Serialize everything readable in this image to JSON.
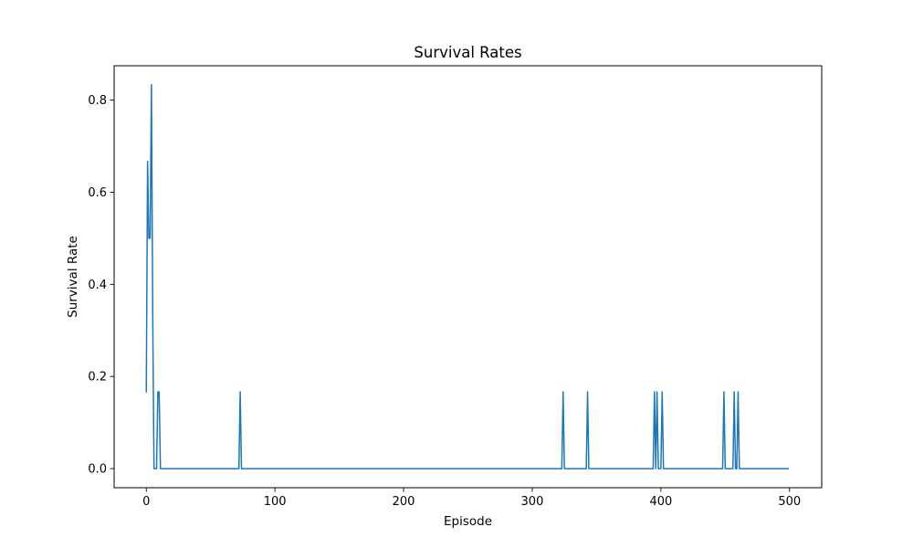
{
  "chart_data": {
    "type": "line",
    "title": "Survival Rates",
    "xlabel": "Episode",
    "ylabel": "Survival Rate",
    "xlim": [
      -25,
      525
    ],
    "ylim": [
      -0.0415,
      0.8745
    ],
    "xticks": [
      0,
      100,
      200,
      300,
      400,
      500
    ],
    "xtick_labels": [
      "0",
      "100",
      "200",
      "300",
      "400",
      "500"
    ],
    "yticks": [
      0.0,
      0.2,
      0.4,
      0.6,
      0.8
    ],
    "ytick_labels": [
      "0.0",
      "0.2",
      "0.4",
      "0.6",
      "0.8"
    ],
    "grid": false,
    "legend": "none",
    "series": [
      {
        "color": "#1f77b4",
        "points": [
          [
            0,
            0.1667
          ],
          [
            1,
            0.6667
          ],
          [
            2,
            0.5
          ],
          [
            3,
            0.5
          ],
          [
            4,
            0.8333
          ],
          [
            5,
            0.3333
          ],
          [
            6,
            0.0
          ],
          [
            7,
            0.0
          ],
          [
            8,
            0.0
          ],
          [
            9,
            0.1667
          ],
          [
            10,
            0.1667
          ],
          [
            11,
            0.0
          ],
          [
            72,
            0.0
          ],
          [
            73,
            0.1667
          ],
          [
            74,
            0.0
          ],
          [
            323,
            0.0
          ],
          [
            324,
            0.1667
          ],
          [
            325,
            0.0
          ],
          [
            342,
            0.0
          ],
          [
            343,
            0.1667
          ],
          [
            344,
            0.0
          ],
          [
            394,
            0.0
          ],
          [
            395,
            0.1667
          ],
          [
            396,
            0.0
          ],
          [
            397,
            0.1667
          ],
          [
            398,
            0.0
          ],
          [
            400,
            0.0
          ],
          [
            401,
            0.1667
          ],
          [
            402,
            0.0
          ],
          [
            448,
            0.0
          ],
          [
            449,
            0.1667
          ],
          [
            450,
            0.0
          ],
          [
            456,
            0.0
          ],
          [
            457,
            0.1667
          ],
          [
            458,
            0.0
          ],
          [
            459,
            0.0
          ],
          [
            460,
            0.1667
          ],
          [
            461,
            0.0
          ],
          [
            499,
            0.0
          ]
        ]
      }
    ]
  }
}
